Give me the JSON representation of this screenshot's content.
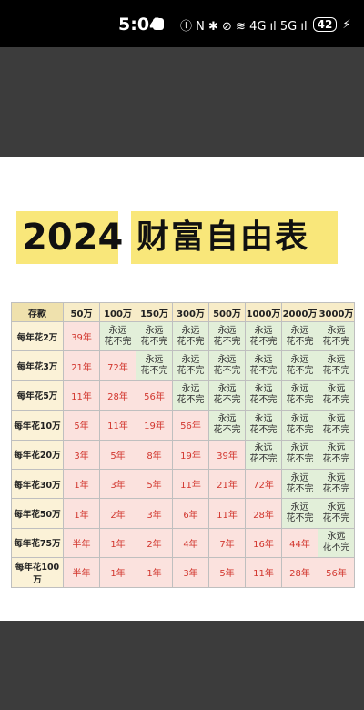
{
  "status_bar": {
    "time": "5:04",
    "icons_text": "ⓛ N ✱ ⊘ ≋ 4G ıl 5G ıl",
    "battery": "42"
  },
  "title": {
    "year": "2024",
    "text": "财富自由表"
  },
  "table": {
    "corner": "存款",
    "columns": [
      "50万",
      "100万",
      "150万",
      "300万",
      "500万",
      "1000万",
      "2000万",
      "3000万"
    ],
    "rows": [
      {
        "label": "每年花2万",
        "cells": [
          "39年",
          "永远\n花不完",
          "永远\n花不完",
          "永远\n花不完",
          "永远\n花不完",
          "永远\n花不完",
          "永远\n花不完",
          "永远\n花不完"
        ]
      },
      {
        "label": "每年花3万",
        "cells": [
          "21年",
          "72年",
          "永远\n花不完",
          "永远\n花不完",
          "永远\n花不完",
          "永远\n花不完",
          "永远\n花不完",
          "永远\n花不完"
        ]
      },
      {
        "label": "每年花5万",
        "cells": [
          "11年",
          "28年",
          "56年",
          "永远\n花不完",
          "永远\n花不完",
          "永远\n花不完",
          "永远\n花不完",
          "永远\n花不完"
        ]
      },
      {
        "label": "每年花10万",
        "cells": [
          "5年",
          "11年",
          "19年",
          "56年",
          "永远\n花不完",
          "永远\n花不完",
          "永远\n花不完",
          "永远\n花不完"
        ]
      },
      {
        "label": "每年花20万",
        "cells": [
          "3年",
          "5年",
          "8年",
          "19年",
          "39年",
          "永远\n花不完",
          "永远\n花不完",
          "永远\n花不完"
        ]
      },
      {
        "label": "每年花30万",
        "cells": [
          "1年",
          "3年",
          "5年",
          "11年",
          "21年",
          "72年",
          "永远\n花不完",
          "永远\n花不完"
        ]
      },
      {
        "label": "每年花50万",
        "cells": [
          "1年",
          "2年",
          "3年",
          "6年",
          "11年",
          "28年",
          "永远\n花不完",
          "永远\n花不完"
        ]
      },
      {
        "label": "每年花75万",
        "cells": [
          "半年",
          "1年",
          "2年",
          "4年",
          "7年",
          "16年",
          "44年",
          "永远\n花不完"
        ]
      },
      {
        "label": "每年花100万",
        "cells": [
          "半年",
          "1年",
          "1年",
          "3年",
          "5年",
          "11年",
          "28年",
          "56年"
        ]
      }
    ]
  },
  "colors": {
    "title_highlight": "#f9e77a",
    "finite_cell_bg": "#fbe2de",
    "finite_cell_text": "#d2362e",
    "forever_cell_bg": "#e2efd9",
    "header_bg": "#f7ecc8"
  }
}
